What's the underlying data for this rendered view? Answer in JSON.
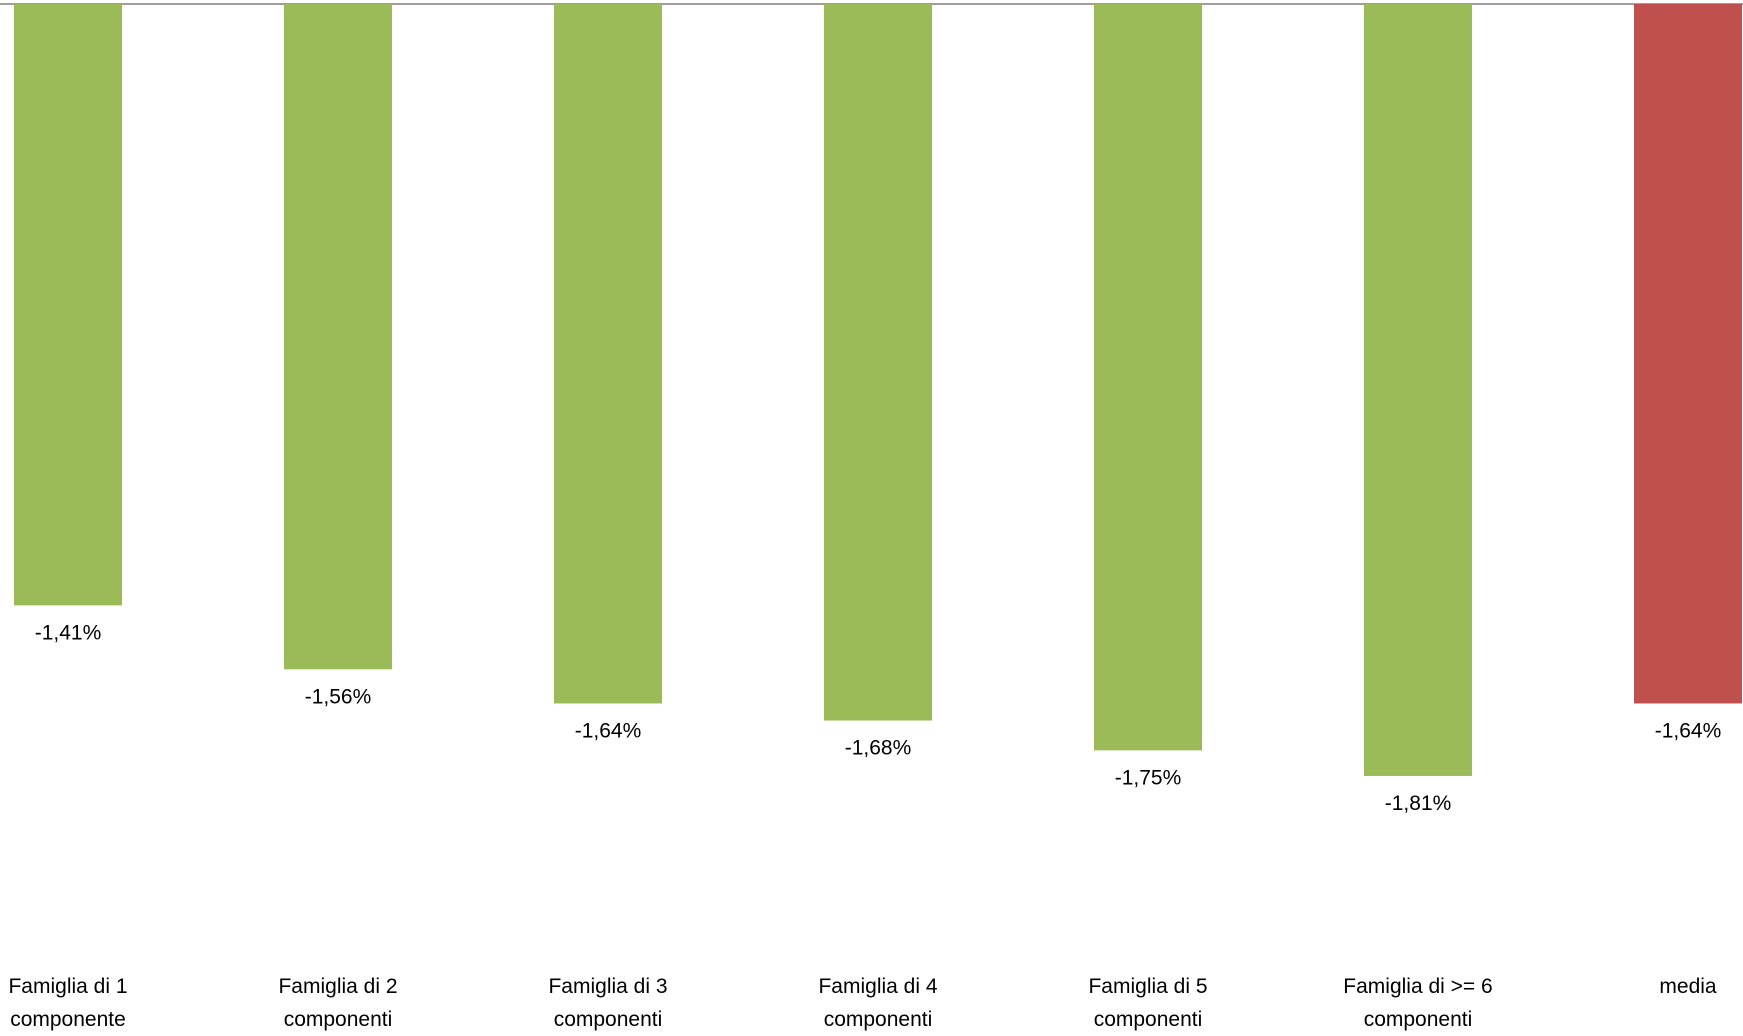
{
  "chart_data": {
    "type": "bar",
    "title": "",
    "xlabel": "",
    "ylabel": "",
    "categories": [
      [
        "Famiglia di 1",
        "componente"
      ],
      [
        "Famiglia di 2",
        "componenti"
      ],
      [
        "Famiglia di 3",
        "componenti"
      ],
      [
        "Famiglia di 4",
        "componenti"
      ],
      [
        "Famiglia di 5",
        "componenti"
      ],
      [
        "Famiglia di >= 6",
        "componenti"
      ],
      [
        "media"
      ]
    ],
    "values": [
      -1.41,
      -1.56,
      -1.64,
      -1.68,
      -1.75,
      -1.81,
      -1.64
    ],
    "data_labels": [
      "-1,41%",
      "-1,56%",
      "-1,64%",
      "-1,68%",
      "-1,75%",
      "-1,81%",
      "-1,64%"
    ],
    "colors": [
      "#9bbb59",
      "#9bbb59",
      "#9bbb59",
      "#9bbb59",
      "#9bbb59",
      "#9bbb59",
      "#c0504d"
    ],
    "axis_color": "#7f7f7f",
    "grid": false,
    "legend": "none"
  }
}
